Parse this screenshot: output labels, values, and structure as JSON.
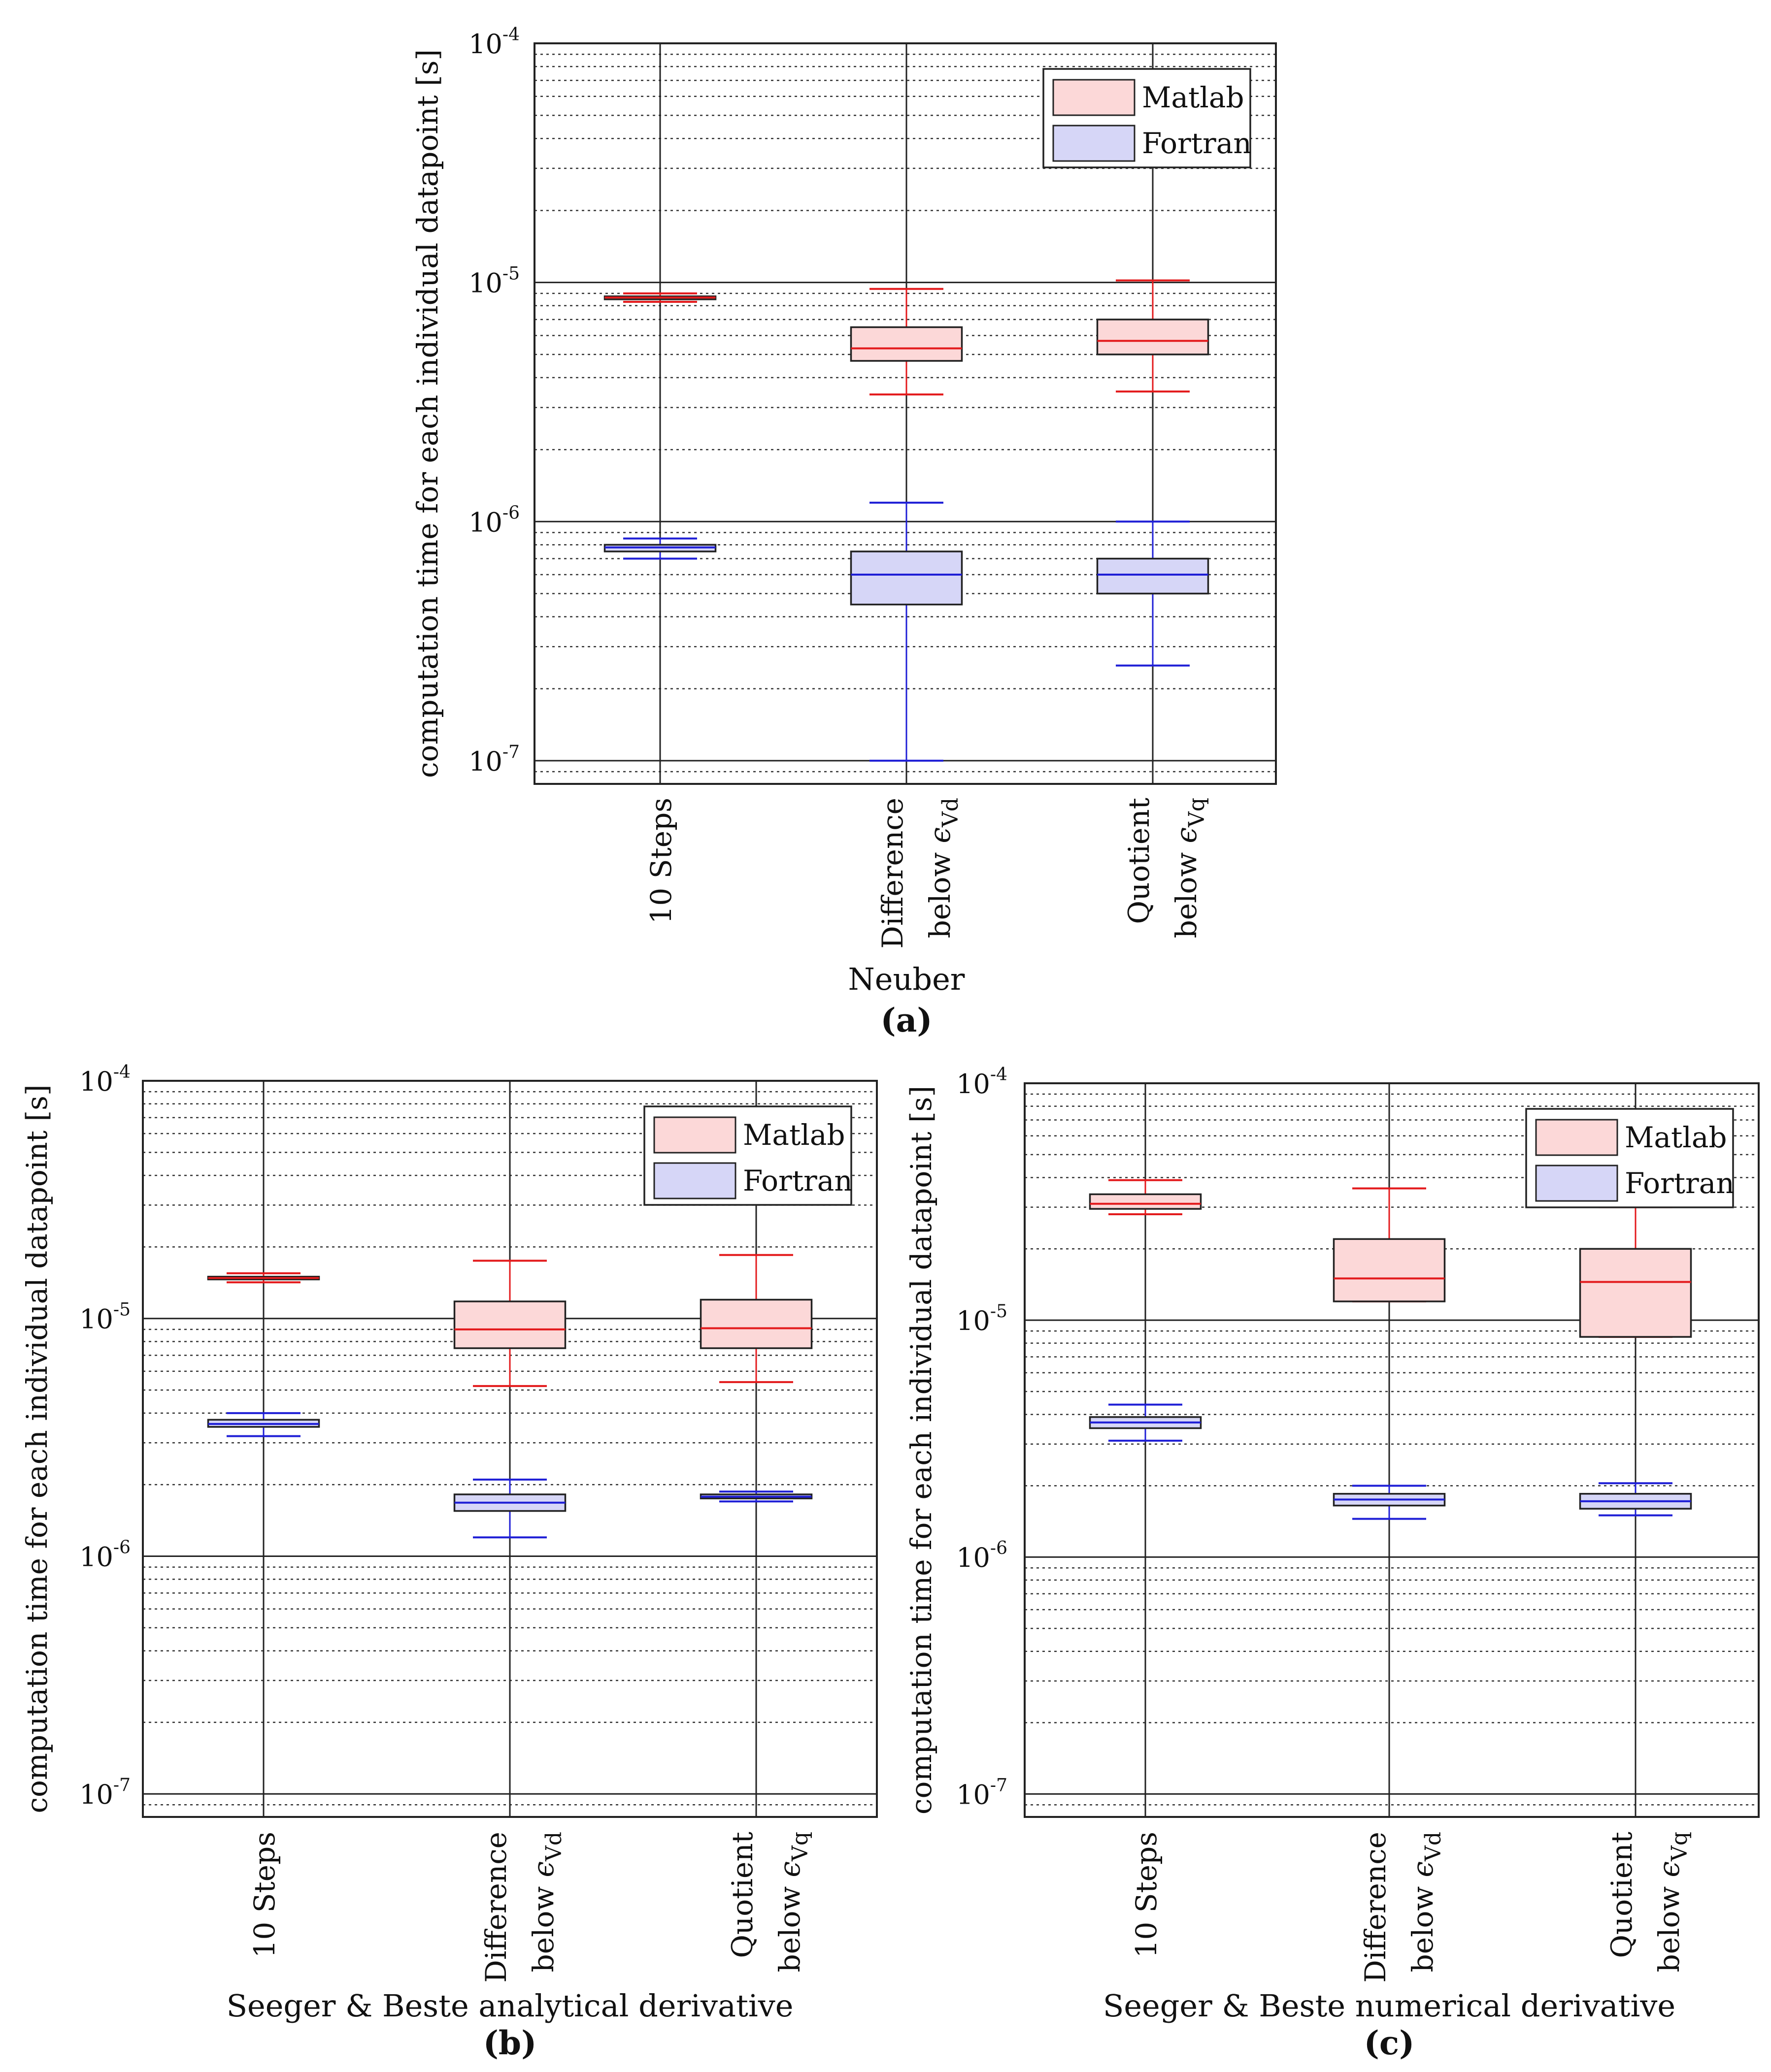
{
  "chart_data": [
    {
      "type": "box",
      "panel_label": "(a)",
      "xlabel": "Neuber",
      "ylabel": "computation time for each individual datapoint [s]",
      "yscale": "log",
      "ylim": [
        8e-08,
        0.0001
      ],
      "ytick_labels": [
        {
          "base": "10",
          "exp": "-4"
        },
        {
          "base": "10",
          "exp": "-5"
        },
        {
          "base": "10",
          "exp": "-6"
        },
        {
          "base": "10",
          "exp": "-7"
        }
      ],
      "categories": [
        {
          "line1": "10 Steps",
          "line2": ""
        },
        {
          "line1": "Difference",
          "line2": "below ",
          "sym": "ϵ",
          "sub": "Vd"
        },
        {
          "line1": "Quotient",
          "line2": "below ",
          "sym": "ϵ",
          "sub": "Vq"
        }
      ],
      "legend": {
        "position": "top-right",
        "entries": [
          "Matlab",
          "Fortran"
        ]
      },
      "series": [
        {
          "name": "Matlab",
          "color": "#e31a1c",
          "fill": "#fcd8d8",
          "boxes": [
            {
              "whisker_low": 8.3e-06,
              "q1": 8.5e-06,
              "median": 8.65e-06,
              "q3": 8.75e-06,
              "whisker_high": 9e-06
            },
            {
              "whisker_low": 3.4e-06,
              "q1": 4.7e-06,
              "median": 5.3e-06,
              "q3": 6.5e-06,
              "whisker_high": 9.4e-06
            },
            {
              "whisker_low": 3.5e-06,
              "q1": 5e-06,
              "median": 5.7e-06,
              "q3": 7e-06,
              "whisker_high": 1.02e-05
            }
          ]
        },
        {
          "name": "Fortran",
          "color": "#1f1fd6",
          "fill": "#d6d6f7",
          "boxes": [
            {
              "whisker_low": 7e-07,
              "q1": 7.5e-07,
              "median": 7.8e-07,
              "q3": 8e-07,
              "whisker_high": 8.5e-07
            },
            {
              "whisker_low": 1e-07,
              "q1": 4.5e-07,
              "median": 6e-07,
              "q3": 7.5e-07,
              "whisker_high": 1.2e-06
            },
            {
              "whisker_low": 2.5e-07,
              "q1": 5e-07,
              "median": 6e-07,
              "q3": 7e-07,
              "whisker_high": 1e-06
            }
          ]
        }
      ]
    },
    {
      "type": "box",
      "panel_label": "(b)",
      "xlabel": "Seeger & Beste analytical derivative",
      "ylabel": "computation time for each individual datapoint [s]",
      "yscale": "log",
      "ylim": [
        8e-08,
        0.0001
      ],
      "ytick_labels": [
        {
          "base": "10",
          "exp": "-4"
        },
        {
          "base": "10",
          "exp": "-5"
        },
        {
          "base": "10",
          "exp": "-6"
        },
        {
          "base": "10",
          "exp": "-7"
        }
      ],
      "categories": [
        {
          "line1": "10 Steps",
          "line2": ""
        },
        {
          "line1": "Difference",
          "line2": "below ",
          "sym": "ϵ",
          "sub": "Vd"
        },
        {
          "line1": "Quotient",
          "line2": "below ",
          "sym": "ϵ",
          "sub": "Vq"
        }
      ],
      "legend": {
        "position": "top-right",
        "entries": [
          "Matlab",
          "Fortran"
        ]
      },
      "series": [
        {
          "name": "Matlab",
          "color": "#e31a1c",
          "fill": "#fcd8d8",
          "boxes": [
            {
              "whisker_low": 1.42e-05,
              "q1": 1.46e-05,
              "median": 1.48e-05,
              "q3": 1.5e-05,
              "whisker_high": 1.55e-05
            },
            {
              "whisker_low": 5.2e-06,
              "q1": 7.5e-06,
              "median": 9e-06,
              "q3": 1.18e-05,
              "whisker_high": 1.75e-05
            },
            {
              "whisker_low": 5.4e-06,
              "q1": 7.5e-06,
              "median": 9.1e-06,
              "q3": 1.2e-05,
              "whisker_high": 1.85e-05
            }
          ]
        },
        {
          "name": "Fortran",
          "color": "#1f1fd6",
          "fill": "#d6d6f7",
          "boxes": [
            {
              "whisker_low": 3.2e-06,
              "q1": 3.5e-06,
              "median": 3.6e-06,
              "q3": 3.75e-06,
              "whisker_high": 4e-06
            },
            {
              "whisker_low": 1.2e-06,
              "q1": 1.55e-06,
              "median": 1.68e-06,
              "q3": 1.82e-06,
              "whisker_high": 2.1e-06
            },
            {
              "whisker_low": 1.7e-06,
              "q1": 1.75e-06,
              "median": 1.78e-06,
              "q3": 1.82e-06,
              "whisker_high": 1.87e-06
            }
          ]
        }
      ]
    },
    {
      "type": "box",
      "panel_label": "(c)",
      "xlabel": "Seeger & Beste numerical derivative",
      "ylabel": "computation time for each individual datapoint [s]",
      "yscale": "log",
      "ylim": [
        8e-08,
        0.0001
      ],
      "ytick_labels": [
        {
          "base": "10",
          "exp": "-4"
        },
        {
          "base": "10",
          "exp": "-5"
        },
        {
          "base": "10",
          "exp": "-6"
        },
        {
          "base": "10",
          "exp": "-7"
        }
      ],
      "categories": [
        {
          "line1": "10 Steps",
          "line2": ""
        },
        {
          "line1": "Difference",
          "line2": "below ",
          "sym": "ϵ",
          "sub": "Vd"
        },
        {
          "line1": "Quotient",
          "line2": "below ",
          "sym": "ϵ",
          "sub": "Vq"
        }
      ],
      "legend": {
        "position": "top-right",
        "entries": [
          "Matlab",
          "Fortran"
        ]
      },
      "series": [
        {
          "name": "Matlab",
          "color": "#e31a1c",
          "fill": "#fcd8d8",
          "boxes": [
            {
              "whisker_low": 2.8e-05,
              "q1": 2.95e-05,
              "median": 3.1e-05,
              "q3": 3.4e-05,
              "whisker_high": 3.9e-05
            },
            {
              "whisker_low": 1.2e-05,
              "q1": 1.2e-05,
              "median": 1.5e-05,
              "q3": 2.2e-05,
              "whisker_high": 3.6e-05
            },
            {
              "whisker_low": 8.5e-06,
              "q1": 8.5e-06,
              "median": 1.45e-05,
              "q3": 2e-05,
              "whisker_high": 3e-05
            }
          ]
        },
        {
          "name": "Fortran",
          "color": "#1f1fd6",
          "fill": "#d6d6f7",
          "boxes": [
            {
              "whisker_low": 3.1e-06,
              "q1": 3.5e-06,
              "median": 3.7e-06,
              "q3": 3.9e-06,
              "whisker_high": 4.4e-06
            },
            {
              "whisker_low": 1.45e-06,
              "q1": 1.65e-06,
              "median": 1.75e-06,
              "q3": 1.85e-06,
              "whisker_high": 2e-06
            },
            {
              "whisker_low": 1.5e-06,
              "q1": 1.6e-06,
              "median": 1.72e-06,
              "q3": 1.85e-06,
              "whisker_high": 2.05e-06
            }
          ]
        }
      ]
    }
  ]
}
